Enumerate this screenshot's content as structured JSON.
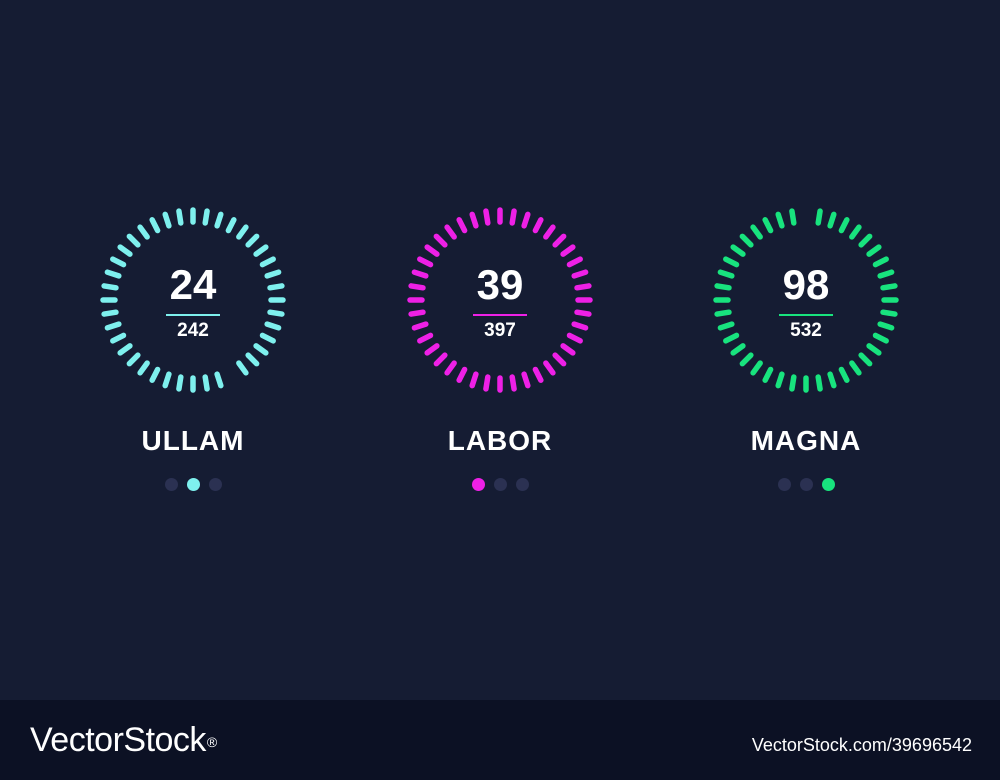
{
  "widgets": [
    {
      "value": "24",
      "total": "242",
      "label": "ULLAM",
      "color": "#7ef0ee",
      "gap_position": "bottom-right",
      "active_dot": 1
    },
    {
      "value": "39",
      "total": "397",
      "label": "LABOR",
      "color": "#ee20e6",
      "gap_position": "none",
      "active_dot": 0
    },
    {
      "value": "98",
      "total": "532",
      "label": "MAGNA",
      "color": "#18e37e",
      "gap_position": "top",
      "active_dot": 2
    }
  ],
  "footer": {
    "brand": "VectorStock",
    "brand_mark": "®",
    "stock_id": "VectorStock.com/39696542"
  }
}
